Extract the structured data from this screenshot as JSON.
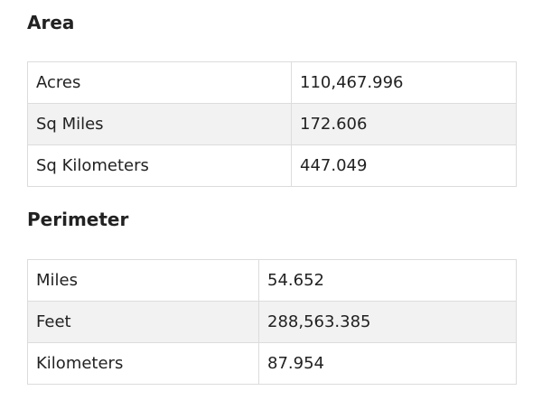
{
  "sections": [
    {
      "title": "Area",
      "rows": [
        [
          "Acres",
          "110,467.996"
        ],
        [
          "Sq Miles",
          "172.606"
        ],
        [
          "Sq Kilometers",
          "447.049"
        ]
      ]
    },
    {
      "title": "Perimeter",
      "rows": [
        [
          "Miles",
          "54.652"
        ],
        [
          "Feet",
          "288,563.385"
        ],
        [
          "Kilometers",
          "87.954"
        ]
      ]
    }
  ]
}
